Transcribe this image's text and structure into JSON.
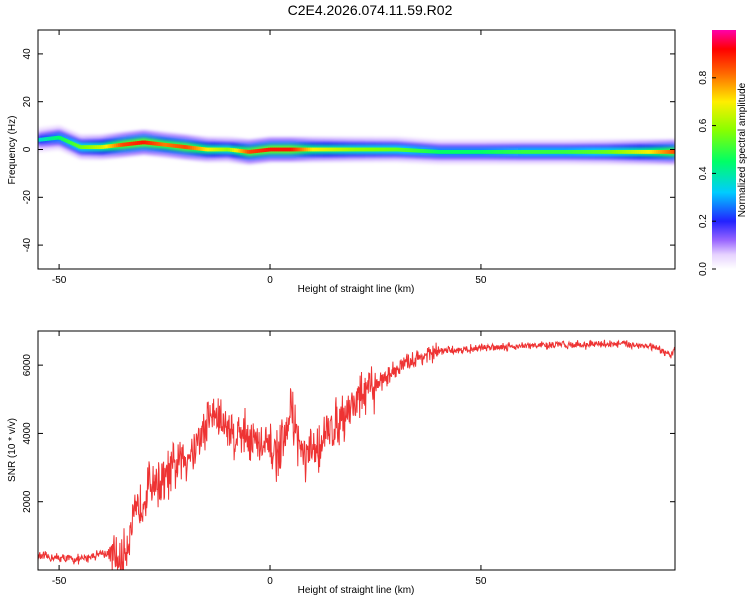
{
  "figure": {
    "title": "C2E4.2026.074.11.59.R02"
  },
  "chart_data": [
    {
      "type": "heatmap",
      "name": "spectrogram",
      "xlabel": "Height of straight line (km)",
      "ylabel": "Frequency (Hz)",
      "xlim": [
        -55,
        96
      ],
      "ylim": [
        -50,
        50
      ],
      "xticks": [
        -50,
        0,
        50
      ],
      "yticks": [
        -40,
        -20,
        0,
        20,
        40
      ],
      "grid": false,
      "colorbar": {
        "label": "Normalized spectral amplitude",
        "range": [
          0,
          1
        ],
        "ticks": [
          "0.0",
          "0.2",
          "0.4",
          "0.6",
          "0.8"
        ],
        "colormap": "rainbow (white-violet-blue-cyan-green-yellow-orange-red-magenta)"
      },
      "ridge": {
        "description": "main spectral ridge of frequency vs height",
        "x": [
          -55,
          -50,
          -45,
          -40,
          -35,
          -30,
          -25,
          -20,
          -15,
          -10,
          -5,
          0,
          5,
          10,
          20,
          30,
          40,
          50,
          60,
          70,
          80,
          90,
          96
        ],
        "y": [
          4,
          5,
          1,
          1,
          2,
          3,
          2,
          1,
          0,
          0,
          -1,
          0,
          0,
          0,
          0,
          0,
          -1,
          -1,
          -1,
          -1,
          -1,
          -1,
          -1
        ],
        "amplitude": [
          0.35,
          0.45,
          0.55,
          0.65,
          0.85,
          0.9,
          0.8,
          0.85,
          0.7,
          0.6,
          0.85,
          0.9,
          0.9,
          0.7,
          0.6,
          0.55,
          0.45,
          0.45,
          0.5,
          0.5,
          0.55,
          0.7,
          0.85
        ]
      }
    },
    {
      "type": "line",
      "name": "snr",
      "xlabel": "Height of straight line (km)",
      "ylabel": "SNR (10 * v/v)",
      "xlim": [
        -55,
        96
      ],
      "ylim": [
        0,
        7000
      ],
      "xticks": [
        -50,
        0,
        50
      ],
      "yticks": [
        2000,
        4000,
        6000
      ],
      "grid": false,
      "color": "#ee3333",
      "x": [
        -55,
        -50,
        -45,
        -40,
        -38,
        -36,
        -35,
        -34,
        -32,
        -30,
        -28,
        -26,
        -24,
        -22,
        -20,
        -18,
        -16,
        -15,
        -14,
        -12,
        -10,
        -8,
        -6,
        -4,
        -2,
        0,
        2,
        4,
        5,
        6,
        8,
        10,
        12,
        15,
        20,
        25,
        30,
        35,
        40,
        45,
        50,
        55,
        60,
        65,
        70,
        75,
        80,
        85,
        90,
        95,
        96
      ],
      "y": [
        400,
        350,
        300,
        500,
        450,
        250,
        200,
        800,
        1500,
        2100,
        2700,
        2500,
        2800,
        3100,
        3300,
        3600,
        4000,
        4300,
        4600,
        4400,
        4200,
        3900,
        4100,
        3800,
        3600,
        3500,
        3400,
        3900,
        4900,
        4100,
        3200,
        3400,
        3700,
        4200,
        4900,
        5400,
        5900,
        6200,
        6400,
        6450,
        6500,
        6550,
        6560,
        6580,
        6600,
        6600,
        6620,
        6620,
        6550,
        6300,
        6450
      ]
    }
  ]
}
